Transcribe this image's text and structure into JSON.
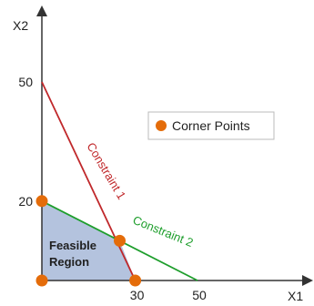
{
  "chart_data": {
    "type": "line",
    "xlabel": "X1",
    "ylabel": "X2",
    "xlim": [
      0,
      50
    ],
    "ylim": [
      0,
      50
    ],
    "x_ticks": [
      {
        "value": 30,
        "label": "30"
      },
      {
        "value": 50,
        "label": "50"
      }
    ],
    "y_ticks": [
      {
        "value": 20,
        "label": "20"
      },
      {
        "value": 50,
        "label": "50"
      }
    ],
    "series": [
      {
        "name": "Constraint 1",
        "points": [
          [
            0,
            50
          ],
          [
            30,
            0
          ]
        ],
        "color": "#c0282b"
      },
      {
        "name": "Constraint 2",
        "points": [
          [
            0,
            20
          ],
          [
            50,
            0
          ]
        ],
        "color": "#1e9e2c"
      }
    ],
    "feasible_region": {
      "label_lines": [
        "Feasible",
        "Region"
      ],
      "polygon": [
        [
          0,
          0
        ],
        [
          0,
          20
        ],
        [
          25,
          10
        ],
        [
          30,
          0
        ]
      ],
      "color": "#b4c3de"
    },
    "corner_points": [
      [
        0,
        0
      ],
      [
        0,
        20
      ],
      [
        25,
        10
      ],
      [
        30,
        0
      ]
    ],
    "corner_color": "#e46c0a",
    "legend": {
      "label": "Corner Points",
      "placement": "top-right"
    }
  }
}
